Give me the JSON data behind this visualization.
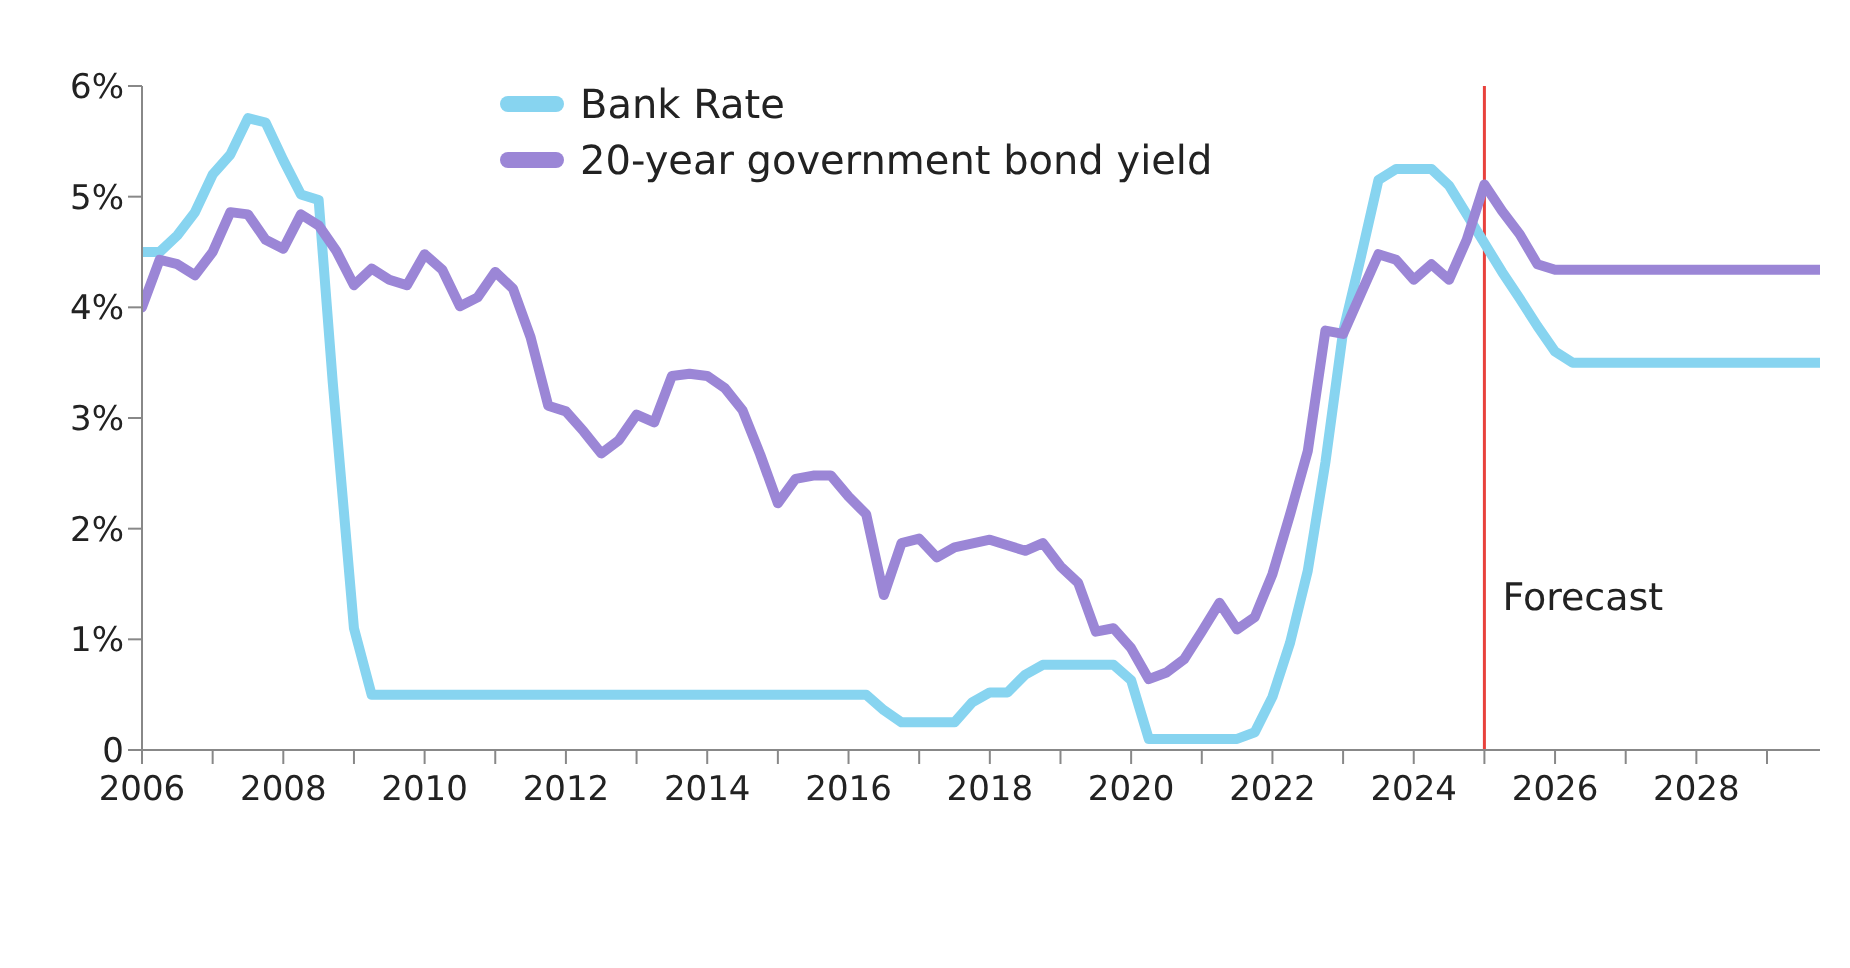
{
  "chart_data": {
    "type": "line",
    "series": [
      {
        "name": "Bank Rate",
        "color": "#87d4f0",
        "x": [
          2006.0,
          2006.25,
          2006.5,
          2006.75,
          2007.0,
          2007.25,
          2007.5,
          2007.75,
          2008.0,
          2008.25,
          2008.5,
          2008.7,
          2009.0,
          2009.25,
          2016.25,
          2016.5,
          2016.75,
          2017.5,
          2017.75,
          2018.0,
          2018.25,
          2018.5,
          2018.75,
          2019.75,
          2020.0,
          2020.25,
          2021.5,
          2021.75,
          2022.0,
          2022.25,
          2022.5,
          2022.75,
          2023.0,
          2023.25,
          2023.5,
          2023.75,
          2024.25,
          2024.5,
          2024.75,
          2025.0,
          2025.25,
          2025.5,
          2025.75,
          2026.0,
          2026.25,
          2029.75
        ],
        "values": [
          4.5,
          4.5,
          4.65,
          4.86,
          5.2,
          5.38,
          5.71,
          5.67,
          5.33,
          5.02,
          4.97,
          3.32,
          1.1,
          0.5,
          0.5,
          0.36,
          0.25,
          0.25,
          0.43,
          0.52,
          0.52,
          0.68,
          0.77,
          0.77,
          0.63,
          0.1,
          0.1,
          0.16,
          0.48,
          0.97,
          1.62,
          2.6,
          3.78,
          4.45,
          5.15,
          5.25,
          5.25,
          5.1,
          4.84,
          4.58,
          4.32,
          4.08,
          3.83,
          3.6,
          3.5,
          3.5
        ]
      },
      {
        "name": "20-year government bond yield",
        "color": "#9b86d6",
        "x": [
          2006.0,
          2006.25,
          2006.5,
          2006.75,
          2007.0,
          2007.25,
          2007.5,
          2007.75,
          2008.0,
          2008.25,
          2008.5,
          2008.75,
          2009.0,
          2009.25,
          2009.5,
          2009.75,
          2010.0,
          2010.25,
          2010.5,
          2010.75,
          2011.0,
          2011.25,
          2011.5,
          2011.75,
          2012.0,
          2012.25,
          2012.5,
          2012.75,
          2013.0,
          2013.25,
          2013.5,
          2013.75,
          2014.0,
          2014.25,
          2014.5,
          2014.75,
          2015.0,
          2015.25,
          2015.5,
          2015.75,
          2016.0,
          2016.25,
          2016.5,
          2016.75,
          2017.0,
          2017.25,
          2017.5,
          2018.0,
          2018.5,
          2018.75,
          2019.0,
          2019.25,
          2019.5,
          2019.75,
          2020.0,
          2020.25,
          2020.5,
          2020.75,
          2021.0,
          2021.25,
          2021.5,
          2021.75,
          2022.0,
          2022.25,
          2022.5,
          2022.75,
          2023.0,
          2023.25,
          2023.5,
          2023.75,
          2024.0,
          2024.25,
          2024.5,
          2024.75,
          2025.0,
          2025.25,
          2025.5,
          2025.75,
          2026.0,
          2029.75
        ],
        "values": [
          4.0,
          4.43,
          4.39,
          4.29,
          4.5,
          4.86,
          4.84,
          4.61,
          4.53,
          4.84,
          4.74,
          4.51,
          4.2,
          4.35,
          4.25,
          4.2,
          4.48,
          4.34,
          4.01,
          4.09,
          4.32,
          4.17,
          3.73,
          3.11,
          3.06,
          2.88,
          2.68,
          2.8,
          3.03,
          2.96,
          3.38,
          3.4,
          3.38,
          3.27,
          3.07,
          2.67,
          2.23,
          2.45,
          2.48,
          2.48,
          2.29,
          2.13,
          1.4,
          1.87,
          1.91,
          1.74,
          1.83,
          1.9,
          1.8,
          1.87,
          1.66,
          1.51,
          1.07,
          1.1,
          0.92,
          0.64,
          0.7,
          0.82,
          1.07,
          1.33,
          1.09,
          1.2,
          1.59,
          2.13,
          2.7,
          3.79,
          3.76,
          4.12,
          4.48,
          4.43,
          4.25,
          4.39,
          4.25,
          4.61,
          5.11,
          4.87,
          4.66,
          4.39,
          4.34,
          4.34
        ]
      }
    ],
    "xlim": [
      2006,
      2029.75
    ],
    "xticks": [
      2006,
      {
        "value": 2007,
        "label": null
      },
      2008,
      {
        "value": 2009,
        "label": null
      },
      2010,
      {
        "value": 2011,
        "label": null
      },
      2012,
      {
        "value": 2013,
        "label": null
      },
      2014,
      {
        "value": 2015,
        "label": null
      },
      2016,
      {
        "value": 2017,
        "label": null
      },
      2018,
      {
        "value": 2019,
        "label": null
      },
      2020,
      {
        "value": 2021,
        "label": null
      },
      2022,
      {
        "value": 2023,
        "label": null
      },
      2024,
      {
        "value": 2025,
        "label": null
      },
      2026,
      {
        "value": 2027,
        "label": null
      },
      2028,
      {
        "value": 2029,
        "label": null
      }
    ],
    "ylim": [
      0,
      6
    ],
    "yticks": [
      0,
      {
        "value": 1,
        "label": "1%"
      },
      {
        "value": 2,
        "label": "2%"
      },
      {
        "value": 3,
        "label": "3%"
      },
      {
        "value": 4,
        "label": "4%"
      },
      {
        "value": 5,
        "label": "5%"
      },
      {
        "value": 6,
        "label": "6%"
      }
    ],
    "ref_lines": [
      {
        "axis": "x",
        "value": 2025,
        "label": "Forecast",
        "color": "#e8413c"
      }
    ],
    "legend": "top",
    "grid": false,
    "marker": "none",
    "line_style": "solid"
  }
}
